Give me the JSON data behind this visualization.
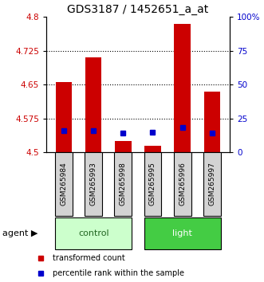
{
  "title": "GDS3187 / 1452651_a_at",
  "samples": [
    "GSM265984",
    "GSM265993",
    "GSM265998",
    "GSM265995",
    "GSM265996",
    "GSM265997"
  ],
  "group_boundaries": [
    3
  ],
  "group_names": [
    "control",
    "light"
  ],
  "red_values": [
    4.655,
    4.71,
    4.525,
    4.515,
    4.785,
    4.635
  ],
  "blue_values": [
    4.548,
    4.548,
    4.543,
    4.545,
    4.555,
    4.543
  ],
  "y_min": 4.5,
  "y_max": 4.8,
  "y_ticks_left": [
    4.5,
    4.575,
    4.65,
    4.725,
    4.8
  ],
  "y_ticks_right": [
    0,
    25,
    50,
    75,
    100
  ],
  "y_ticks_right_labels": [
    "0",
    "25",
    "50",
    "75",
    "100%"
  ],
  "bar_color": "#cc0000",
  "blue_color": "#0000cc",
  "control_bg": "#ccffcc",
  "light_bg": "#44cc44",
  "sample_bg": "#d3d3d3",
  "bar_width": 0.55,
  "blue_marker_size": 4,
  "title_fontsize": 10,
  "tick_fontsize": 7.5,
  "sample_fontsize": 6.5,
  "group_fontsize": 8,
  "legend_fontsize": 7
}
